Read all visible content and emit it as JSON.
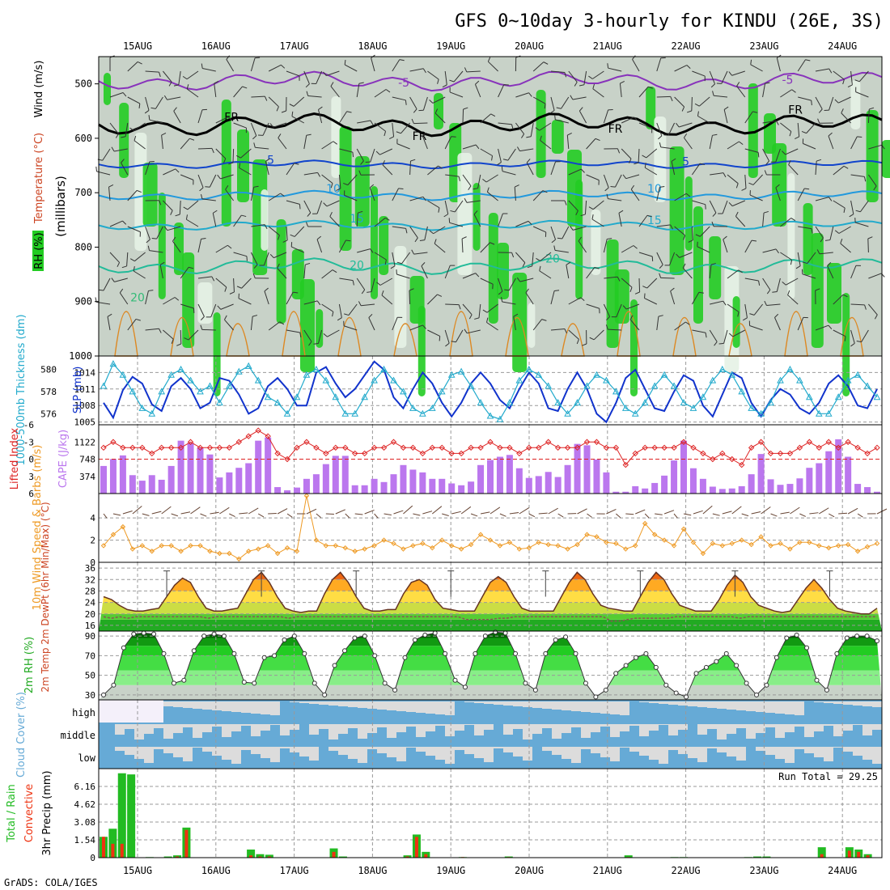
{
  "title": "GFS 0~10day 3-hourly for KINDU (26E, 3S)",
  "footer": "GrADS: COLA/IGES",
  "run_total_label": "Run Total = 29.25",
  "colors": {
    "rh_green": "#22cc22",
    "rh_light": "#e6f2e6",
    "rh_gray": "#c8d2c8",
    "slp": "#1133cc",
    "thickness": "#22aacc",
    "lifted": "#dd2222",
    "cape": "#bb77ee",
    "wind": "#ee9922",
    "cloud_blue": "#66aad6",
    "cloud_gray": "#dcdcdc",
    "precip_total": "#22bb22",
    "precip_conv": "#ee3311"
  },
  "chart_data": [
    {
      "type": "heatmap",
      "title": "GFS 0~10day 3-hourly for KINDU (26E, 3S)",
      "x_dates": [
        "15AUG",
        "16AUG",
        "17AUG",
        "18AUG",
        "19AUG",
        "20AUG",
        "21AUG",
        "22AUG",
        "23AUG",
        "24AUG"
      ],
      "ylabel": "(millibars)",
      "legend": [
        "RH (%)",
        "Temperature (°C)",
        "Wind (m/s)"
      ],
      "ylim": [
        450,
        1000
      ],
      "yticks": [
        500,
        600,
        700,
        800,
        900,
        1000
      ],
      "contour_labels": [
        {
          "text": "-5",
          "day": 3.4,
          "p": 505,
          "color": "#8833bb"
        },
        {
          "text": "-5",
          "day": 8.3,
          "p": 500,
          "color": "#8833bb"
        },
        {
          "text": "FR",
          "day": 1.2,
          "p": 568,
          "color": "#000000"
        },
        {
          "text": "FR",
          "day": 3.6,
          "p": 603,
          "color": "#000000"
        },
        {
          "text": "FR",
          "day": 6.1,
          "p": 590,
          "color": "#000000"
        },
        {
          "text": "FR",
          "day": 8.4,
          "p": 555,
          "color": "#000000"
        },
        {
          "text": "5",
          "day": 1.7,
          "p": 647,
          "color": "#1144cc"
        },
        {
          "text": "5",
          "day": 7.0,
          "p": 650,
          "color": "#1144cc"
        },
        {
          "text": "10",
          "day": 2.5,
          "p": 700,
          "color": "#2299dd"
        },
        {
          "text": "10",
          "day": 6.6,
          "p": 700,
          "color": "#2299dd"
        },
        {
          "text": "15",
          "day": 2.8,
          "p": 755,
          "color": "#22aacc"
        },
        {
          "text": "15",
          "day": 6.6,
          "p": 758,
          "color": "#22aacc"
        },
        {
          "text": "20",
          "day": 2.8,
          "p": 840,
          "color": "#22bb99"
        },
        {
          "text": "20",
          "day": 5.3,
          "p": 828,
          "color": "#22bb99"
        },
        {
          "text": "20",
          "day": 0.0,
          "p": 900,
          "color": "#33bb77"
        }
      ]
    },
    {
      "type": "line",
      "ylabel_left": "1000-500mb Thickness (dm)",
      "ylabel_right": "SLP (mb)",
      "yticks_left": [
        576,
        578,
        580
      ],
      "yticks_right": [
        1005,
        1008,
        1011,
        1014
      ],
      "ylim_left": [
        575,
        581.2
      ],
      "ylim_right": [
        1004.5,
        1017
      ],
      "series": [
        {
          "name": "SLP (mb)",
          "values": [
            1008.5,
            1005.8,
            1010.8,
            1013.2,
            1012.0,
            1008.2,
            1007.0,
            1011.5,
            1013.0,
            1011.0,
            1007.5,
            1008.5,
            1013.0,
            1012.5,
            1010.0,
            1006.5,
            1007.5,
            1011.5,
            1013.0,
            1011.0,
            1008.0,
            1008.0,
            1014.0,
            1015.0,
            1012.0,
            1009.5,
            1011.0,
            1013.5,
            1016.0,
            1014.5,
            1009.5,
            1007.5,
            1011.0,
            1014.0,
            1012.0,
            1008.5,
            1006.0,
            1008.5,
            1012.0,
            1014.0,
            1012.0,
            1009.0,
            1007.5,
            1011.0,
            1014.0,
            1012.0,
            1007.5,
            1007.0,
            1011.0,
            1014.0,
            1011.0,
            1006.5,
            1005.0,
            1008.5,
            1013.0,
            1014.5,
            1011.0,
            1007.5,
            1007.0,
            1010.5,
            1013.5,
            1012.5,
            1008.0,
            1006.0,
            1010.0,
            1014.0,
            1013.0,
            1008.5,
            1006.0,
            1009.0,
            1011.0,
            1010.0,
            1007.5,
            1006.5,
            1008.5,
            1012.0,
            1013.5,
            1011.5,
            1008.0,
            1007.5,
            1011.0
          ]
        },
        {
          "name": "1000-500mb Thickness (dm)",
          "values": [
            578.5,
            580.5,
            579.5,
            578.0,
            576.5,
            576.0,
            578.0,
            579.5,
            580.0,
            579.0,
            578.0,
            578.5,
            577.0,
            578.5,
            579.8,
            580.3,
            579.0,
            577.5,
            577.0,
            576.0,
            577.5,
            579.5,
            580.0,
            579.0,
            577.5,
            576.0,
            576.0,
            577.5,
            579.0,
            580.0,
            579.0,
            578.0,
            576.5,
            576.0,
            576.5,
            578.0,
            579.5,
            579.8,
            578.5,
            577.0,
            575.8,
            575.5,
            577.0,
            579.0,
            580.0,
            579.5,
            578.5,
            577.0,
            576.0,
            577.0,
            578.5,
            579.5,
            579.0,
            578.0,
            576.5,
            576.0,
            577.0,
            578.5,
            579.5,
            578.5,
            577.0,
            576.5,
            577.5,
            579.0,
            580.0,
            579.5,
            578.0,
            576.5,
            576.0,
            577.0,
            579.0,
            580.0,
            579.0,
            577.5,
            576.0,
            576.0,
            577.5,
            579.0,
            579.5,
            578.5,
            577.5
          ]
        }
      ]
    },
    {
      "type": "bar",
      "ylabel_left": "Lifted Index",
      "ylabel_right": "CAPE (J/kg)",
      "yticks_left": [
        -6,
        -3,
        0,
        3,
        6
      ],
      "yticks_right": [
        374,
        748,
        1122
      ],
      "ylim_left": [
        6,
        -6
      ],
      "ylim_right": [
        0,
        1496
      ],
      "series": [
        {
          "name": "CAPE (J/kg)",
          "values": [
            600,
            750,
            830,
            400,
            280,
            400,
            300,
            600,
            1150,
            1100,
            1000,
            850,
            350,
            460,
            560,
            660,
            1150,
            1220,
            140,
            70,
            130,
            320,
            420,
            640,
            820,
            820,
            180,
            180,
            320,
            250,
            420,
            620,
            520,
            460,
            320,
            320,
            220,
            180,
            260,
            620,
            730,
            800,
            840,
            550,
            340,
            380,
            470,
            360,
            620,
            1080,
            1050,
            740,
            460,
            40,
            40,
            160,
            110,
            230,
            390,
            720,
            1150,
            550,
            320,
            150,
            100,
            110,
            160,
            420,
            860,
            310,
            190,
            210,
            330,
            560,
            660,
            920,
            1180,
            800,
            210,
            140,
            40
          ]
        },
        {
          "name": "Lifted Index",
          "values": [
            -2,
            -3,
            -2,
            -2,
            -2,
            -1,
            -2,
            -2,
            -2,
            -3,
            -2,
            -2,
            -2,
            -2,
            -3,
            -4,
            -5,
            -4,
            -1,
            0,
            -2,
            -3,
            -2,
            -1,
            -2,
            -2,
            -1,
            -1,
            -2,
            -2,
            -3,
            -2,
            -2,
            -1,
            -2,
            -2,
            -1,
            -1,
            -2,
            -2,
            -3,
            -2,
            -2,
            -1,
            -2,
            -2,
            -3,
            -2,
            -2,
            -2,
            -3,
            -3,
            -2,
            -2,
            1,
            -1,
            -2,
            -2,
            -2,
            -2,
            -3,
            -2,
            -1,
            0,
            -1,
            0,
            1,
            -2,
            -3,
            -1,
            -1,
            -1,
            -2,
            -3,
            -2,
            -3,
            -2,
            -3,
            -2,
            -1,
            -2
          ]
        }
      ]
    },
    {
      "type": "line",
      "ylabel": "10m Wind Speed & Barbs (m/s)",
      "yticks": [
        0,
        2,
        4
      ],
      "ylim": [
        0,
        6.2
      ],
      "series": [
        {
          "name": "10m Wind Speed",
          "values": [
            1.5,
            2.5,
            3.2,
            1.2,
            1.5,
            1.0,
            1.5,
            1.5,
            1.0,
            1.5,
            1.5,
            1.0,
            0.8,
            0.8,
            0.3,
            1.0,
            1.2,
            1.5,
            0.8,
            1.3,
            1.0,
            6.0,
            2.0,
            1.5,
            1.5,
            1.3,
            1.0,
            1.2,
            1.5,
            2.0,
            1.7,
            1.2,
            1.5,
            1.7,
            1.3,
            2.0,
            1.5,
            1.2,
            1.6,
            2.5,
            2.0,
            1.5,
            1.8,
            1.2,
            1.3,
            1.8,
            1.6,
            1.5,
            1.2,
            1.6,
            2.5,
            2.3,
            1.8,
            1.7,
            1.2,
            1.5,
            3.5,
            2.5,
            2.0,
            1.5,
            3.0,
            1.8,
            0.8,
            1.7,
            1.5,
            1.7,
            2.0,
            1.6,
            2.3,
            1.5,
            1.7,
            1.2,
            1.8,
            1.8,
            1.5,
            1.3,
            1.5,
            1.6,
            1.0,
            1.4,
            1.7
          ]
        }
      ]
    },
    {
      "type": "area",
      "ylabel": "2m Temp 2m DewPt (6hr Min/Max) (°C)",
      "yticks": [
        16,
        20,
        24,
        28,
        32,
        36
      ],
      "ylim": [
        14,
        38
      ],
      "series": [
        {
          "name": "2m Temp",
          "values": [
            26,
            25,
            23,
            21.5,
            21,
            21,
            21.5,
            22,
            26,
            30,
            32.5,
            31,
            26,
            22,
            21,
            21,
            21.5,
            22,
            27,
            32,
            34.5,
            31,
            26,
            22,
            21,
            20.5,
            21,
            21,
            27,
            32,
            34.5,
            31,
            26,
            22,
            21,
            21,
            21.5,
            21.5,
            27,
            31,
            32,
            30,
            25,
            22,
            21.5,
            21,
            21,
            21,
            26,
            31,
            33,
            31,
            26,
            22,
            21,
            21,
            21,
            21,
            26,
            31,
            34.5,
            32,
            27,
            23,
            22,
            21.5,
            21,
            21,
            26,
            31,
            34.5,
            32,
            27,
            23,
            22,
            21,
            21,
            21,
            25,
            30,
            33.5,
            31,
            26,
            23,
            22,
            21,
            20.5,
            21,
            25,
            29,
            32,
            29,
            25,
            22,
            21,
            20.5,
            20,
            20,
            22
          ]
        },
        {
          "name": "2m DewPt",
          "values": [
            19,
            18.5,
            19,
            18.5,
            19,
            19,
            19,
            19,
            19,
            19,
            19,
            19,
            19,
            18.5,
            19,
            19,
            19,
            19,
            19,
            19,
            19,
            19,
            19,
            18.5,
            19,
            19,
            19,
            19,
            19,
            19,
            19,
            19,
            19,
            19,
            19,
            19,
            19,
            19,
            19,
            19,
            19,
            19,
            19,
            19,
            19,
            18,
            18,
            18,
            18,
            18.5,
            18.5,
            19,
            19,
            19,
            19,
            19,
            19,
            19,
            19,
            19,
            19,
            19,
            19,
            17.5,
            17.5,
            18,
            18.5,
            18.5,
            18.5,
            18.5,
            18.5,
            19,
            19,
            19,
            19,
            19,
            19,
            19,
            19,
            18.5,
            19,
            19,
            19,
            19,
            19,
            19,
            19,
            19,
            19,
            19,
            19,
            19,
            19,
            19,
            19,
            19,
            19
          ]
        }
      ]
    },
    {
      "type": "area",
      "ylabel": "2m RH (%)",
      "yticks": [
        30,
        50,
        70,
        90
      ],
      "ylim": [
        25,
        95
      ],
      "series": [
        {
          "name": "2m RH",
          "values": [
            30,
            40,
            78,
            92,
            93,
            92,
            72,
            42,
            45,
            75,
            90,
            92,
            90,
            72,
            43,
            42,
            68,
            70,
            86,
            90,
            72,
            42,
            30,
            60,
            75,
            88,
            90,
            70,
            42,
            35,
            68,
            86,
            91,
            93,
            72,
            45,
            38,
            72,
            90,
            94,
            93,
            72,
            42,
            35,
            72,
            86,
            89,
            72,
            42,
            28,
            35,
            52,
            60,
            68,
            72,
            58,
            40,
            32,
            28,
            52,
            58,
            64,
            72,
            60,
            42,
            30,
            40,
            68,
            88,
            91,
            78,
            45,
            35,
            72,
            88,
            90,
            90,
            85
          ]
        }
      ]
    },
    {
      "type": "heatmap",
      "ylabel": "Cloud Cover (%)",
      "levels": [
        "high",
        "middle",
        "low"
      ]
    },
    {
      "type": "bar",
      "ylabel": "3hr Precip (mm)",
      "legend": [
        "Total / Rain",
        "Convective"
      ],
      "yticks": [
        0,
        1.54,
        3.08,
        4.62,
        6.16
      ],
      "ylim": [
        0,
        7.7
      ],
      "series": [
        {
          "name": "Total / Rain",
          "values": [
            1.8,
            2.5,
            7.3,
            7.2,
            0,
            0.05,
            0,
            0.1,
            0.2,
            2.6,
            0,
            0,
            0,
            0,
            0,
            0,
            0.7,
            0.3,
            0.25,
            0,
            0,
            0,
            0,
            0,
            0,
            0.8,
            0.1,
            0,
            0,
            0,
            0,
            0,
            0,
            0.2,
            2.0,
            0.5,
            0,
            0,
            0,
            0.05,
            0,
            0,
            0,
            0,
            0.1,
            0,
            0,
            0,
            0,
            0,
            0,
            0,
            0,
            0,
            0,
            0,
            0,
            0.2,
            0,
            0,
            0,
            0,
            0.05,
            0.05,
            0,
            0,
            0,
            0,
            0,
            0,
            0.05,
            0.1,
            0.1,
            0,
            0,
            0,
            0,
            0,
            0.9,
            0,
            0,
            0.9,
            0.7,
            0.3,
            0
          ]
        },
        {
          "name": "Convective",
          "values": [
            1.8,
            1.2,
            1.2,
            0,
            0,
            0,
            0,
            0,
            0.1,
            2.4,
            0,
            0,
            0,
            0,
            0,
            0,
            0.2,
            0.1,
            0.1,
            0,
            0,
            0,
            0,
            0,
            0,
            0.5,
            0,
            0,
            0,
            0,
            0,
            0,
            0,
            0.1,
            1.8,
            0.3,
            0,
            0,
            0,
            0.05,
            0,
            0,
            0,
            0,
            0.05,
            0,
            0,
            0,
            0,
            0,
            0,
            0,
            0,
            0,
            0,
            0,
            0,
            0.05,
            0,
            0,
            0,
            0,
            0,
            0,
            0,
            0,
            0,
            0,
            0,
            0,
            0,
            0,
            0,
            0,
            0,
            0,
            0,
            0,
            0.3,
            0,
            0,
            0.6,
            0.5,
            0.2,
            0
          ]
        }
      ]
    }
  ]
}
